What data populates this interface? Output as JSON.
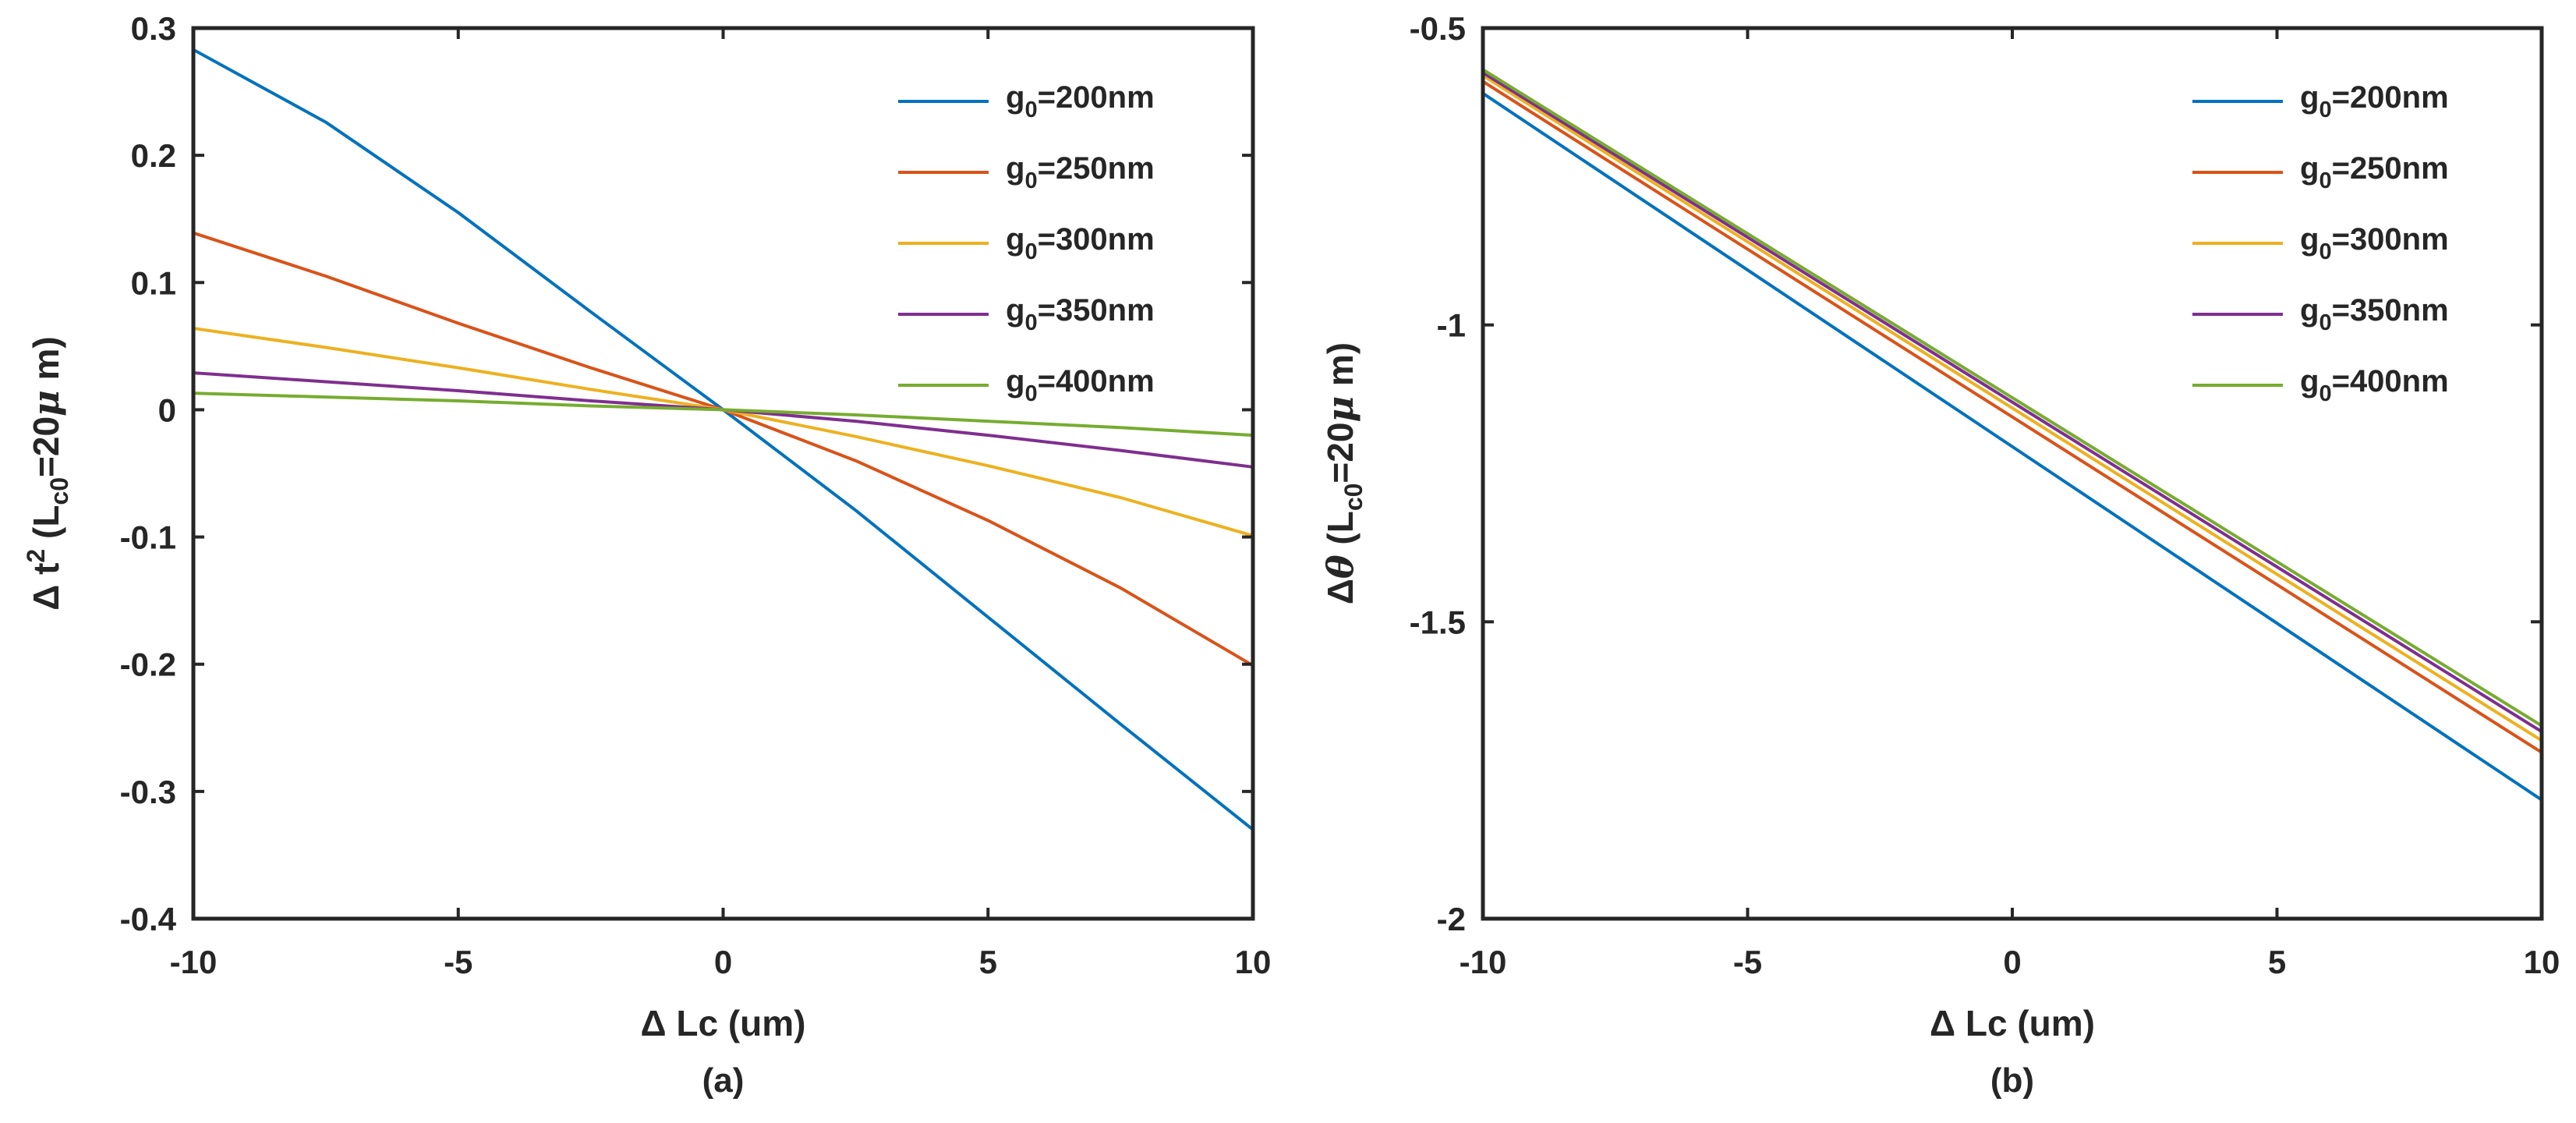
{
  "chart_data": [
    {
      "type": "line",
      "panel_label": "(a)",
      "xlabel": "Δ Lc (um)",
      "ylabel": {
        "prefix": "Δ t",
        "sup": "2",
        "open": " (L",
        "sub": "c0",
        "rest": "=20",
        "mu": "μ",
        "close": " m)"
      },
      "xlim": [
        -10,
        10
      ],
      "ylim": [
        -0.4,
        0.3
      ],
      "xticks": [
        -10,
        -5,
        0,
        5,
        10
      ],
      "xtick_labels": [
        "-10",
        "-5",
        "0",
        "5",
        "10"
      ],
      "yticks": [
        -0.4,
        -0.3,
        -0.2,
        -0.1,
        0,
        0.1,
        0.2,
        0.3
      ],
      "ytick_labels": [
        "-0.4",
        "-0.3",
        "-0.2",
        "-0.1",
        "0",
        "0.1",
        "0.2",
        "0.3"
      ],
      "legend_position": "top-right",
      "x": [
        -10,
        -7.5,
        -5,
        -2.5,
        0,
        2.5,
        5,
        7.5,
        10
      ],
      "series": [
        {
          "name": "g0=200nm",
          "label_main": "g",
          "label_sub": "0",
          "label_rest": "=200nm",
          "color": "#0072BD",
          "values": [
            0.283,
            0.226,
            0.155,
            0.077,
            0.0,
            -0.079,
            -0.163,
            -0.247,
            -0.33
          ]
        },
        {
          "name": "g0=250nm",
          "label_main": "g",
          "label_sub": "0",
          "label_rest": "=250nm",
          "color": "#D95319",
          "values": [
            0.139,
            0.105,
            0.068,
            0.033,
            0.0,
            -0.04,
            -0.087,
            -0.14,
            -0.201
          ]
        },
        {
          "name": "g0=300nm",
          "label_main": "g",
          "label_sub": "0",
          "label_rest": "=300nm",
          "color": "#EDB120",
          "values": [
            0.064,
            0.049,
            0.033,
            0.016,
            0.0,
            -0.021,
            -0.044,
            -0.069,
            -0.099
          ]
        },
        {
          "name": "g0=350nm",
          "label_main": "g",
          "label_sub": "0",
          "label_rest": "=350nm",
          "color": "#7E2F8E",
          "values": [
            0.029,
            0.022,
            0.015,
            0.007,
            0.0,
            -0.009,
            -0.02,
            -0.032,
            -0.045
          ]
        },
        {
          "name": "g0=400nm",
          "label_main": "g",
          "label_sub": "0",
          "label_rest": "=400nm",
          "color": "#77AC30",
          "values": [
            0.013,
            0.01,
            0.007,
            0.003,
            0.0,
            -0.004,
            -0.009,
            -0.014,
            -0.02
          ]
        }
      ]
    },
    {
      "type": "line",
      "panel_label": "(b)",
      "xlabel": "Δ Lc (um)",
      "ylabel": {
        "prefix": "Δ",
        "theta": "θ",
        "open": " (L",
        "sub": "c0",
        "rest": "=20",
        "mu": "μ",
        "close": " m)"
      },
      "xlim": [
        -10,
        10
      ],
      "ylim": [
        -2,
        -0.5
      ],
      "xticks": [
        -10,
        -5,
        0,
        5,
        10
      ],
      "xtick_labels": [
        "-10",
        "-5",
        "0",
        "5",
        "10"
      ],
      "yticks": [
        -2,
        -1.5,
        -1,
        -0.5
      ],
      "ytick_labels": [
        "-2",
        "-1.5",
        "-1",
        "-0.5"
      ],
      "legend_position": "top-right",
      "x": [
        -10,
        10
      ],
      "series": [
        {
          "name": "g0=200nm",
          "label_main": "g",
          "label_sub": "0",
          "label_rest": "=200nm",
          "color": "#0072BD",
          "values": [
            -0.61,
            -1.8
          ]
        },
        {
          "name": "g0=250nm",
          "label_main": "g",
          "label_sub": "0",
          "label_rest": "=250nm",
          "color": "#D95319",
          "values": [
            -0.59,
            -1.72
          ]
        },
        {
          "name": "g0=300nm",
          "label_main": "g",
          "label_sub": "0",
          "label_rest": "=300nm",
          "color": "#EDB120",
          "values": [
            -0.58,
            -1.7
          ]
        },
        {
          "name": "g0=350nm",
          "label_main": "g",
          "label_sub": "0",
          "label_rest": "=350nm",
          "color": "#7E2F8E",
          "values": [
            -0.575,
            -1.685
          ]
        },
        {
          "name": "g0=400nm",
          "label_main": "g",
          "label_sub": "0",
          "label_rest": "=400nm",
          "color": "#77AC30",
          "values": [
            -0.57,
            -1.675
          ]
        }
      ]
    }
  ]
}
